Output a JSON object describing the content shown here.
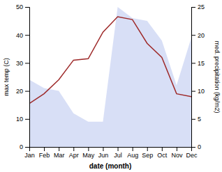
{
  "chart_data": {
    "type": "line",
    "categories": [
      "Jan",
      "Feb",
      "Mar",
      "Apr",
      "May",
      "Jun",
      "Jul",
      "Aug",
      "Sep",
      "Oct",
      "Nov",
      "Dec"
    ],
    "xlabel": "date (month)",
    "ylabel": "max temp (C)",
    "y2label": "med. precipitation (kg/m2)",
    "ylim": [
      0,
      50
    ],
    "yticks": [
      0,
      10,
      20,
      30,
      40,
      50
    ],
    "y2lim": [
      0,
      25
    ],
    "y2ticks": [
      0,
      5,
      10,
      15,
      20,
      25
    ],
    "series": [
      {
        "type": "area",
        "axis": "y2",
        "color": "#b8c4ee",
        "values": [
          12.0,
          10.5,
          10.0,
          6.0,
          4.5,
          4.5,
          25.0,
          23.0,
          22.5,
          19.0,
          11.0,
          19.5
        ]
      },
      {
        "type": "line",
        "color": "#9e2a2a",
        "values": [
          15.5,
          19.0,
          24.0,
          31.0,
          31.5,
          41.0,
          46.5,
          45.5,
          37.0,
          32.0,
          19.0,
          18.0
        ]
      }
    ]
  }
}
